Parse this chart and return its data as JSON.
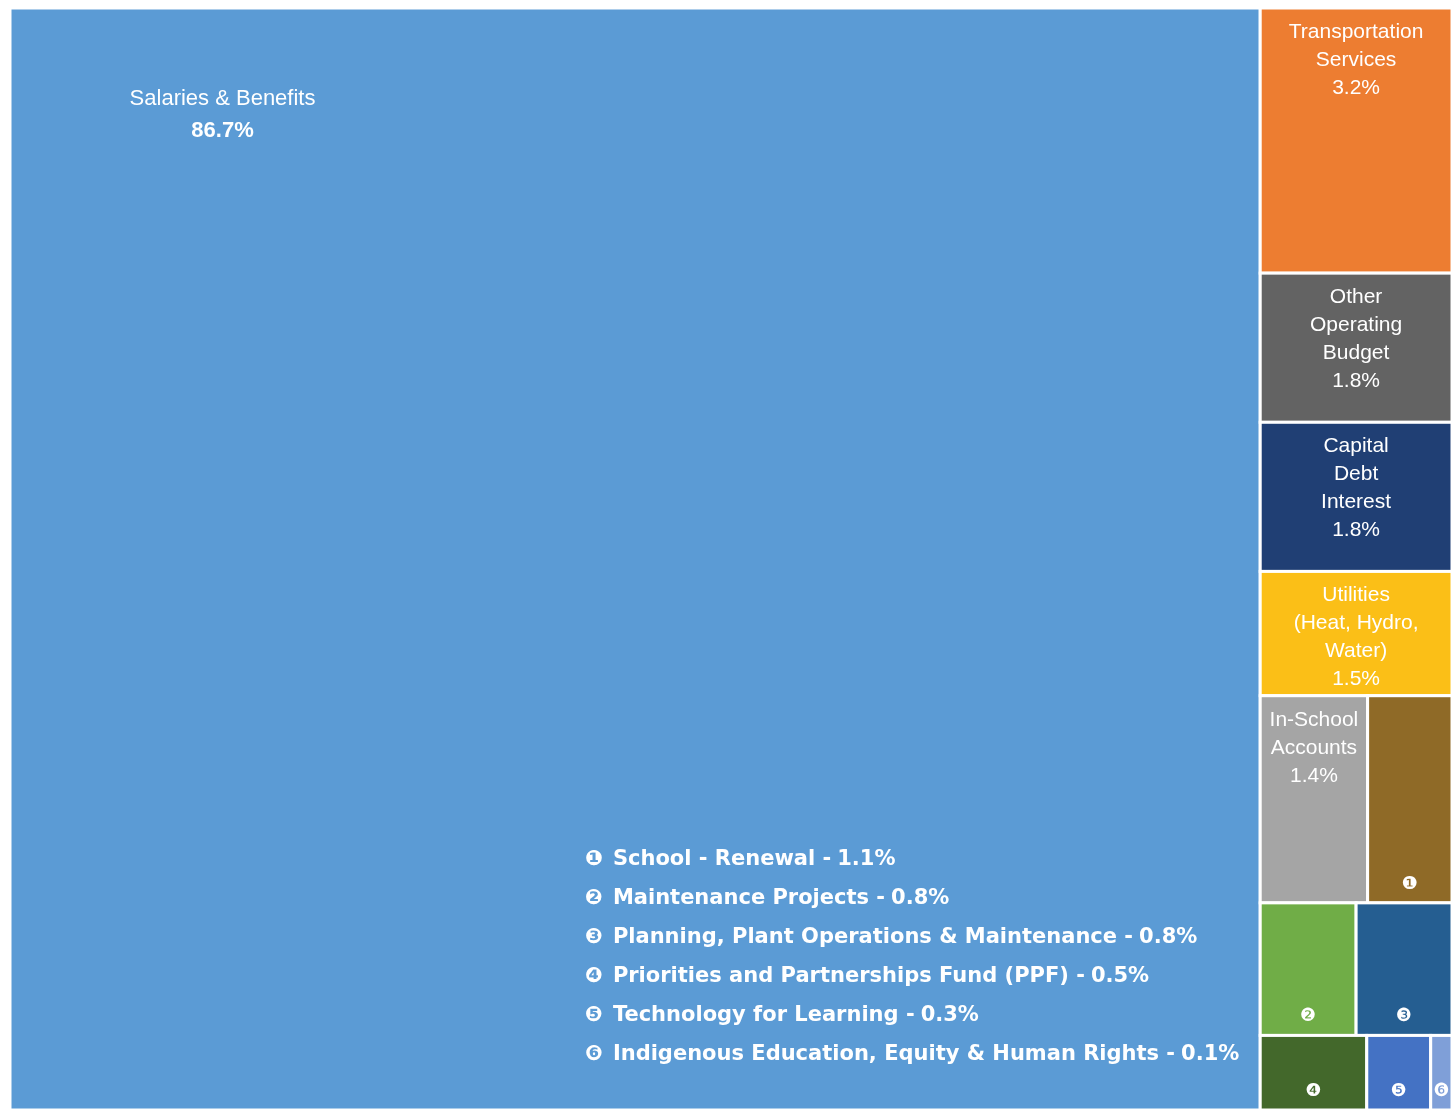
{
  "chart_data": {
    "type": "other",
    "categories": [
      "Salaries & Benefits",
      "Transportation\nServices",
      "Other\nOperating\nBudget",
      "Capital\nDebt\nInterest",
      "Utilities\n(Heat, Hydro,\nWater)",
      "In-School\nAccounts",
      "❶",
      "❷",
      "❸",
      "❹",
      "❺",
      "❻"
    ],
    "values": [
      86.7,
      3.2,
      1.8,
      1.8,
      1.5,
      1.4,
      1.1,
      0.8,
      0.8,
      0.5,
      0.3,
      0.1
    ],
    "value_labels": [
      "86.7%",
      "3.2%",
      "1.8%",
      "1.8%",
      "1.5%",
      "1.4%",
      "1.1%",
      "0.8%",
      "0.8%",
      "0.5%",
      "0.3%",
      "0.1%"
    ],
    "colors": [
      "#5b9bd5",
      "#ed7d31",
      "#636363",
      "#203f74",
      "#fbbf17",
      "#a5a5a5",
      "#8f6a27",
      "#70ad47",
      "#255e91",
      "#43682b",
      "#4472c4",
      "#7f9fd8"
    ],
    "annotations": [
      "School - Renewal  -",
      "Maintenance Projects -",
      "Planning, Plant Operations & Maintenance -",
      "Priorities and Partnerships Fund (PPF) -",
      "Technology for Learning -",
      "Indigenous Education, Equity & Human Rights -"
    ]
  }
}
